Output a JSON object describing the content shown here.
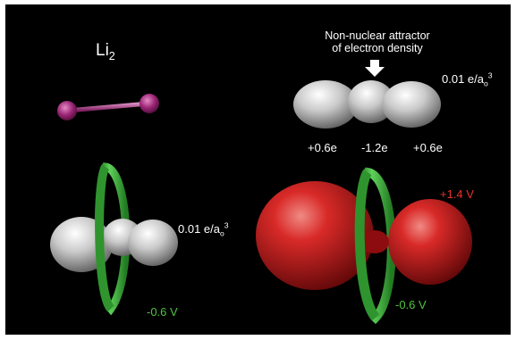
{
  "molecule": {
    "symbol": "Li",
    "subscript": "2"
  },
  "attractor_label": {
    "line1": "Non-nuclear attractor",
    "line2": "of electron density"
  },
  "isovalue": {
    "value": "0.01 e/a",
    "sub": "o",
    "sup": "3"
  },
  "charges": {
    "left": "+0.6e",
    "center": "-1.2e",
    "right": "+0.6e"
  },
  "potentials": {
    "negative": "-0.6 V",
    "positive": "+1.4 V"
  },
  "colors": {
    "background": "#000000",
    "atom": "#a02a7a",
    "bond": "#b0468e",
    "density_isosurface": "#c8c8c8",
    "ring": "#3aa63a",
    "positive_lobe": "#c0161c",
    "label_white": "#ffffff",
    "label_green": "#4fc43f",
    "label_red": "#e8322c"
  },
  "icons": [
    "arrow-down-icon"
  ]
}
